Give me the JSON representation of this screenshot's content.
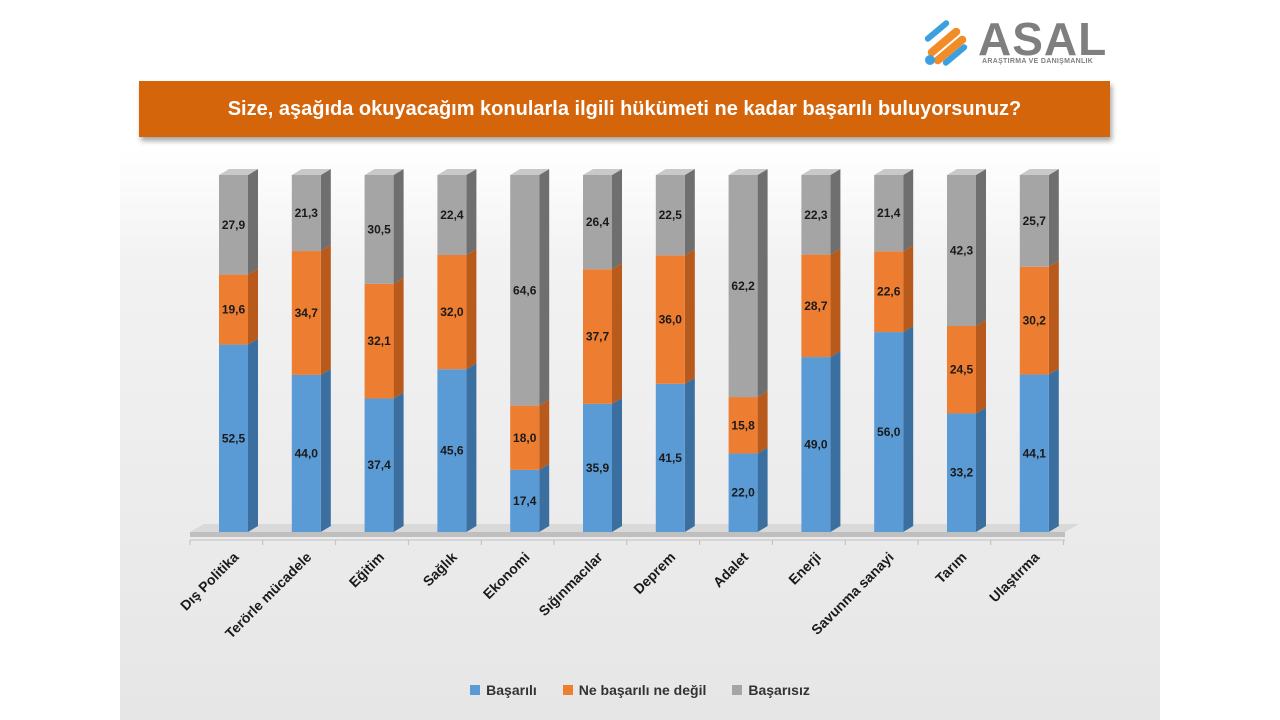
{
  "logo": {
    "name": "ASAL",
    "tagline": "ARAŞTIRMA VE DANIŞMANLIK"
  },
  "colors": {
    "basarili": "#5b9bd5",
    "basarili_dark": "#3a6fa0",
    "ne": "#ed7d31",
    "ne_dark": "#b85a1c",
    "basarisiz": "#a5a5a5",
    "basarisiz_dark": "#6f6f6f",
    "title_bar": "#d4650b"
  },
  "chart_data": {
    "type": "bar",
    "stacked": true,
    "title": "Size, aşağıda okuyacağım konularla ilgili hükümeti ne kadar başarılı buluyorsunuz?",
    "categories": [
      "Dış Politika",
      "Terörle mücadele",
      "Eğitim",
      "Sağlık",
      "Ekonomi",
      "Sığınmacılar",
      "Deprem",
      "Adalet",
      "Enerji",
      "Savunma sanayi",
      "Tarım",
      "Ulaştırma"
    ],
    "series": [
      {
        "name": "Başarılı",
        "values": [
          52.5,
          44.0,
          37.4,
          45.6,
          17.4,
          35.9,
          41.5,
          22.0,
          49.0,
          56.0,
          33.2,
          44.1
        ],
        "labels": [
          "52,5",
          "44,0",
          "37,4",
          "45,6",
          "17,4",
          "35,9",
          "41,5",
          "22,0",
          "49,0",
          "56,0",
          "33,2",
          "44,1"
        ]
      },
      {
        "name": "Ne başarılı ne değil",
        "values": [
          19.6,
          34.7,
          32.1,
          32.0,
          18.0,
          37.7,
          36.0,
          15.8,
          28.7,
          22.6,
          24.5,
          30.2
        ],
        "labels": [
          "19,6",
          "34,7",
          "32,1",
          "32,0",
          "18,0",
          "37,7",
          "36,0",
          "15,8",
          "28,7",
          "22,6",
          "24,5",
          "30,2"
        ]
      },
      {
        "name": "Başarısız",
        "values": [
          27.9,
          21.3,
          30.5,
          22.4,
          64.6,
          26.4,
          22.5,
          62.2,
          22.3,
          21.4,
          42.3,
          25.7
        ],
        "labels": [
          "27,9",
          "21,3",
          "30,5",
          "22,4",
          "64,6",
          "26,4",
          "22,5",
          "62,2",
          "22,3",
          "21,4",
          "42,3",
          "25,7"
        ]
      }
    ],
    "ylim": [
      0,
      100
    ],
    "grid": false,
    "legend": "bottom"
  }
}
